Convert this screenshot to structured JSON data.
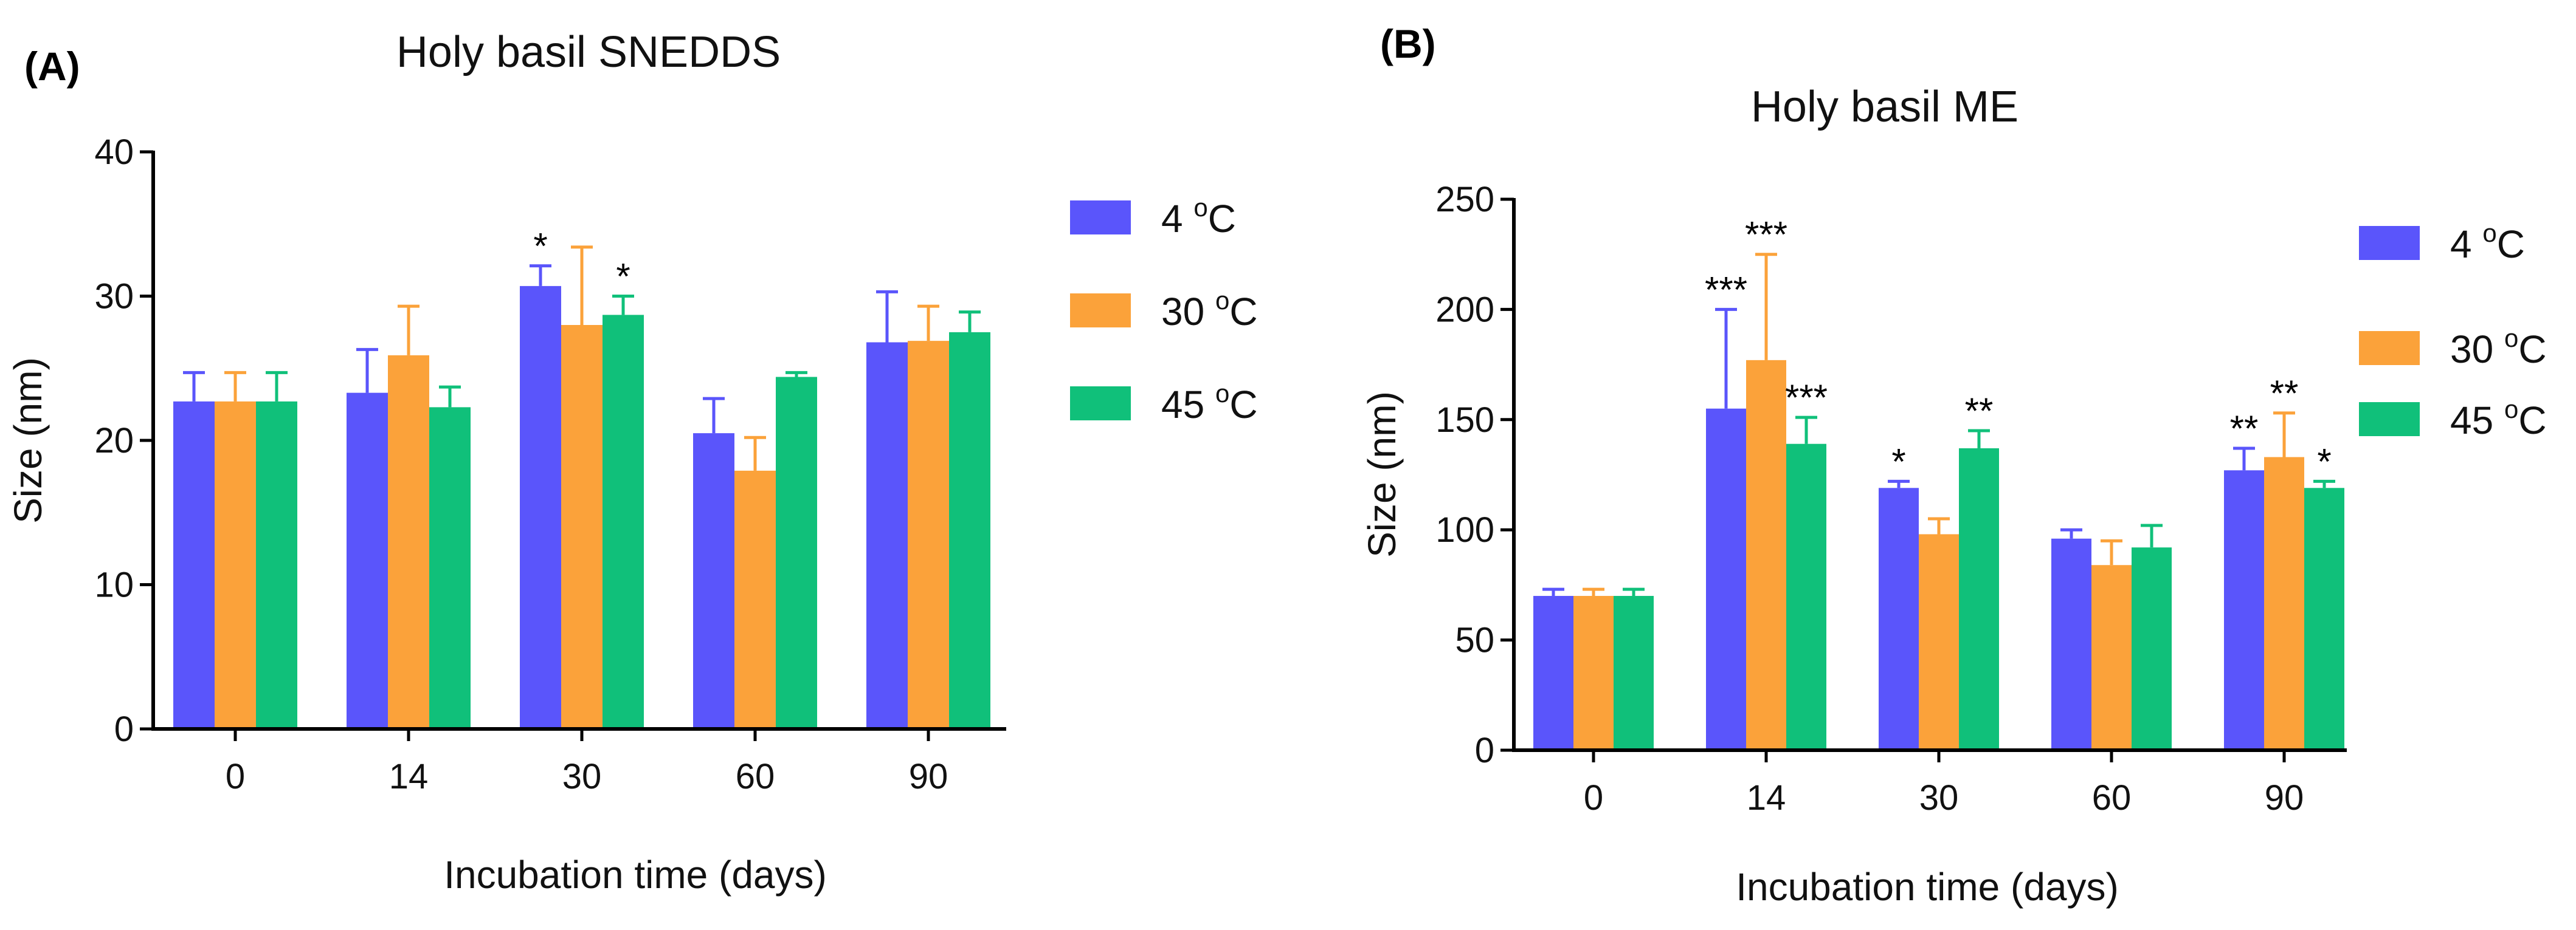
{
  "chart_data": [
    {
      "panel": "(A)",
      "type": "bar",
      "title": "Holy basil SNEDDS",
      "xlabel": "Incubation time (days)",
      "ylabel": "Size (nm)",
      "ylim": [
        0,
        40
      ],
      "yticks": [
        0,
        10,
        20,
        30,
        40
      ],
      "categories": [
        "0",
        "14",
        "30",
        "60",
        "90"
      ],
      "legend_unit": "C",
      "legend_sup": "o",
      "series": [
        {
          "name": "4",
          "color": "#5a55fb",
          "values": [
            22.7,
            23.3,
            30.7,
            20.5,
            26.8
          ],
          "errors": [
            2.0,
            3.0,
            1.4,
            2.4,
            3.5
          ],
          "sig": [
            "",
            "",
            "*",
            "",
            ""
          ]
        },
        {
          "name": "30",
          "color": "#fba23a",
          "values": [
            22.7,
            25.9,
            28.0,
            17.9,
            26.9
          ],
          "errors": [
            2.0,
            3.4,
            5.4,
            2.3,
            2.4
          ],
          "sig": [
            "",
            "",
            "",
            "",
            ""
          ]
        },
        {
          "name": "45",
          "color": "#10c07a",
          "values": [
            22.7,
            22.3,
            28.7,
            24.4,
            27.5
          ],
          "errors": [
            2.0,
            1.4,
            1.3,
            0.3,
            1.4
          ],
          "sig": [
            "",
            "",
            "*",
            "",
            ""
          ]
        }
      ]
    },
    {
      "panel": "(B)",
      "type": "bar",
      "title": "Holy basil ME",
      "xlabel": "Incubation time (days)",
      "ylabel": "Size (nm)",
      "ylim": [
        0,
        250
      ],
      "yticks": [
        0,
        50,
        100,
        150,
        200,
        250
      ],
      "categories": [
        "0",
        "14",
        "30",
        "60",
        "90"
      ],
      "legend_unit": "C",
      "legend_sup": "o",
      "series": [
        {
          "name": "4",
          "color": "#5a55fb",
          "values": [
            70,
            155,
            119,
            96,
            127
          ],
          "errors": [
            3,
            45,
            3,
            4,
            10
          ],
          "sig": [
            "",
            "***",
            "*",
            "",
            "**"
          ]
        },
        {
          "name": "30",
          "color": "#fba23a",
          "values": [
            70,
            177,
            98,
            84,
            133
          ],
          "errors": [
            3,
            48,
            7,
            11,
            20
          ],
          "sig": [
            "",
            "***",
            "",
            "",
            "**"
          ]
        },
        {
          "name": "45",
          "color": "#10c07a",
          "values": [
            70,
            139,
            137,
            92,
            119
          ],
          "errors": [
            3,
            12,
            8,
            10,
            3
          ],
          "sig": [
            "",
            "***",
            "**",
            "",
            "*"
          ]
        }
      ]
    }
  ]
}
